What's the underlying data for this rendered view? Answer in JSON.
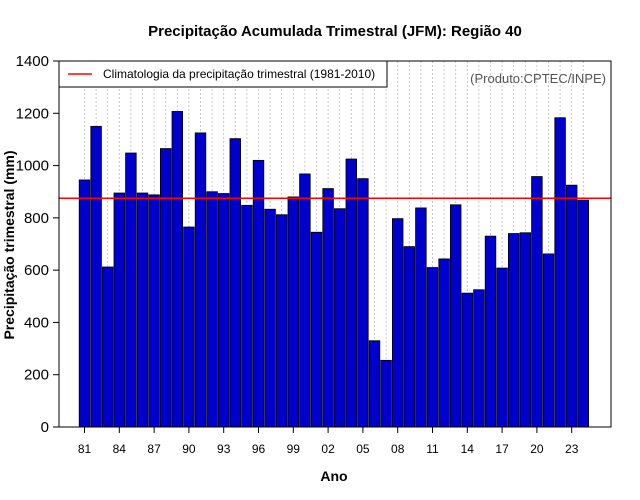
{
  "chart_data": {
    "type": "bar",
    "title": "Precipitação Acumulada Trimestral (JFM): Região 40",
    "xlabel": "Ano",
    "ylabel": "Precipitação trimestral (mm)",
    "source_note": "(Produto:CPTEC/INPE)",
    "ylim": [
      0,
      1400
    ],
    "y_ticks": [
      0,
      200,
      400,
      600,
      800,
      1000,
      1200,
      1400
    ],
    "grid": "vertical dotted",
    "legend": {
      "position": "top-left",
      "label": "Climatologia da precipitação trimestral (1981-2010)"
    },
    "reference_line": {
      "name": "Climatologia",
      "value": 875,
      "color": "#ff0000"
    },
    "bar_color": "#0000cc",
    "categories": [
      "81",
      "82",
      "83",
      "84",
      "85",
      "86",
      "87",
      "88",
      "89",
      "90",
      "91",
      "92",
      "93",
      "94",
      "95",
      "96",
      "97",
      "98",
      "99",
      "00",
      "01",
      "02",
      "03",
      "04",
      "05",
      "06",
      "07",
      "08",
      "09",
      "10",
      "11",
      "12",
      "13",
      "14",
      "15",
      "16",
      "17",
      "18",
      "19",
      "20",
      "21",
      "22",
      "23",
      "24"
    ],
    "x_tick_labels": [
      "81",
      "84",
      "87",
      "90",
      "93",
      "96",
      "99",
      "02",
      "05",
      "08",
      "11",
      "14",
      "17",
      "20",
      "23"
    ],
    "values": [
      945,
      1150,
      612,
      895,
      1048,
      895,
      888,
      1065,
      1207,
      765,
      1125,
      900,
      893,
      1103,
      848,
      1020,
      833,
      812,
      880,
      968,
      745,
      912,
      835,
      1025,
      950,
      330,
      255,
      797,
      690,
      838,
      610,
      643,
      850,
      512,
      525,
      730,
      608,
      740,
      743,
      958,
      662,
      1183,
      925,
      868
    ]
  }
}
